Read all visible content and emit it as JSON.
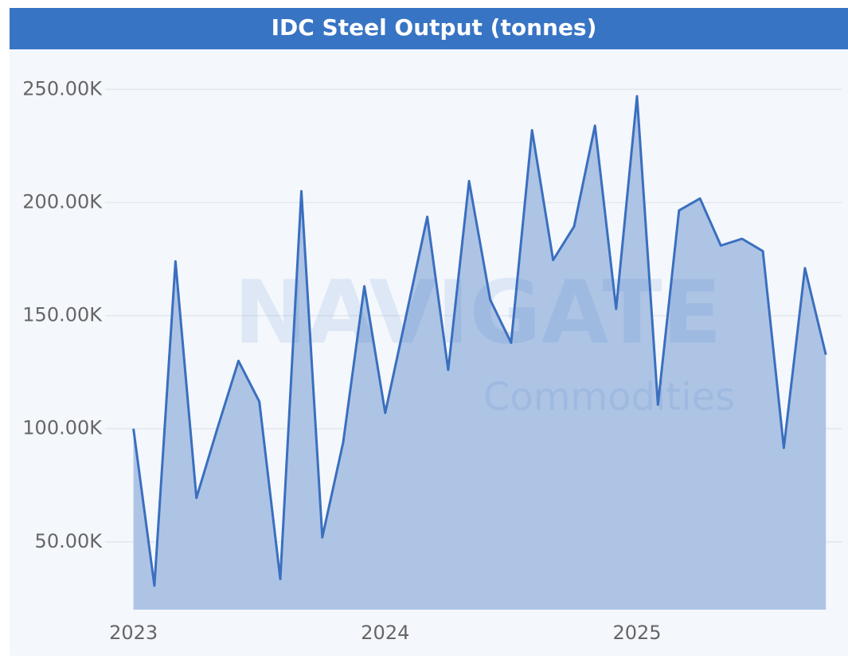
{
  "chart_data": {
    "type": "area",
    "title": "IDC Steel Output (tonnes)",
    "watermark": {
      "brand": "NAVIGATE",
      "sub": "Commodities"
    },
    "x": [
      2023,
      2023.083,
      2023.167,
      2023.25,
      2023.333,
      2023.417,
      2023.5,
      2023.583,
      2023.667,
      2023.75,
      2023.833,
      2023.917,
      2024,
      2024.083,
      2024.167,
      2024.25,
      2024.333,
      2024.417,
      2024.5,
      2024.583,
      2024.667,
      2024.75,
      2024.833,
      2024.917,
      2025,
      2025.083,
      2025.167,
      2025.25,
      2025.333,
      2025.417,
      2025.5,
      2025.583,
      2025.667,
      2025.75
    ],
    "values": [
      100000,
      30600,
      174000,
      69400,
      100000,
      130000,
      112000,
      33500,
      205000,
      52000,
      94000,
      163000,
      107000,
      150000,
      193700,
      126000,
      209500,
      157000,
      138000,
      232000,
      174600,
      189400,
      234000,
      153000,
      247000,
      110600,
      196500,
      201800,
      181000,
      184000,
      178500,
      91500,
      171000,
      132700
    ],
    "color": "#3a6fbf",
    "fill": "#aac1e4",
    "xlim": [
      2022.9,
      2025.8
    ],
    "xticks": [
      2023,
      2024,
      2025
    ],
    "ylim": [
      20000,
      260000
    ],
    "yticks": [
      {
        "value": 50000,
        "label": "50.00K"
      },
      {
        "value": 100000,
        "label": "100.00K"
      },
      {
        "value": 150000,
        "label": "150.00K"
      },
      {
        "value": 200000,
        "label": "200.00K"
      },
      {
        "value": 250000,
        "label": "250.00K"
      }
    ],
    "grid": true
  }
}
